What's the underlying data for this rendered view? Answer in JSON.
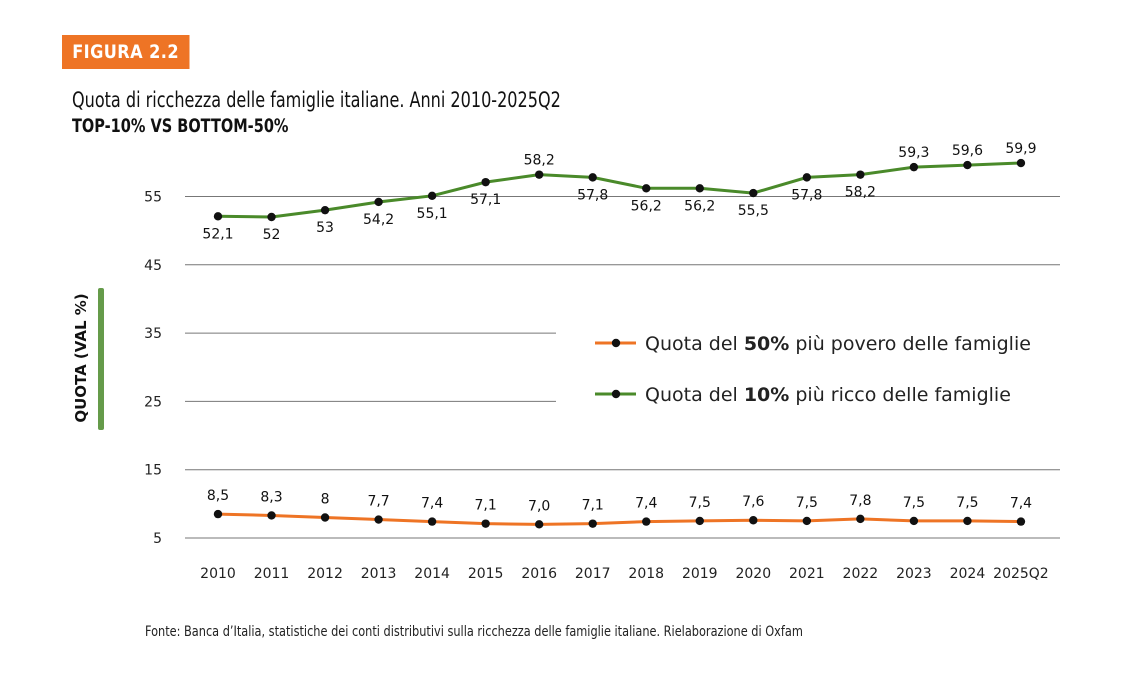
{
  "figure_label": "FIGURA 2.2",
  "title": "Quota di ricchezza delle famiglie italiane. Anni 2010-2025Q2",
  "subtitle": "TOP-10% VS BOTTOM-50%",
  "source": "Fonte: Banca d’Italia, statistiche dei conti distributivi sulla ricchezza delle famiglie italiane. Rielaborazione di Oxfam",
  "chart_data": {
    "type": "line",
    "ylabel": "QUOTA (VAL %)",
    "xlabel": "",
    "y_ticks": [
      5,
      15,
      25,
      35,
      45,
      55
    ],
    "ylim": [
      5,
      62
    ],
    "grid": "horizontal",
    "legend_position": "center-right",
    "categories": [
      "2010",
      "2011",
      "2012",
      "2013",
      "2014",
      "2015",
      "2016",
      "2017",
      "2018",
      "2019",
      "2020",
      "2021",
      "2022",
      "2023",
      "2024",
      "2025Q2"
    ],
    "series": [
      {
        "name": "Quota del 50% più povero delle famiglie",
        "legend_parts": [
          "Quota del ",
          "50%",
          " più povero delle famiglie"
        ],
        "color": "#ee7425",
        "values": [
          8.5,
          8.3,
          8,
          7.7,
          7.4,
          7.1,
          7.0,
          7.1,
          7.4,
          7.5,
          7.6,
          7.5,
          7.8,
          7.5,
          7.5,
          7.4
        ],
        "labels": [
          "8,5",
          "8,3",
          "8",
          "7,7",
          "7,4",
          "7,1",
          "7,0",
          "7,1",
          "7,4",
          "7,5",
          "7,6",
          "7,5",
          "7,8",
          "7,5",
          "7,5",
          "7,4"
        ]
      },
      {
        "name": "Quota del 10% più ricco delle famiglie",
        "legend_parts": [
          "Quota del ",
          "10%",
          " più ricco delle famiglie"
        ],
        "color": "#4a8a2a",
        "values": [
          52.1,
          52,
          53,
          54.2,
          55.1,
          57.1,
          58.2,
          57.8,
          56.2,
          56.2,
          55.5,
          57.8,
          58.2,
          59.3,
          59.6,
          59.9
        ],
        "labels": [
          "52,1",
          "52",
          "53",
          "54,2",
          "55,1",
          "57,1",
          "58,2",
          "57,8",
          "56,2",
          "56,2",
          "55,5",
          "57,8",
          "58,2",
          "59,3",
          "59,6",
          "59,9"
        ]
      }
    ]
  }
}
